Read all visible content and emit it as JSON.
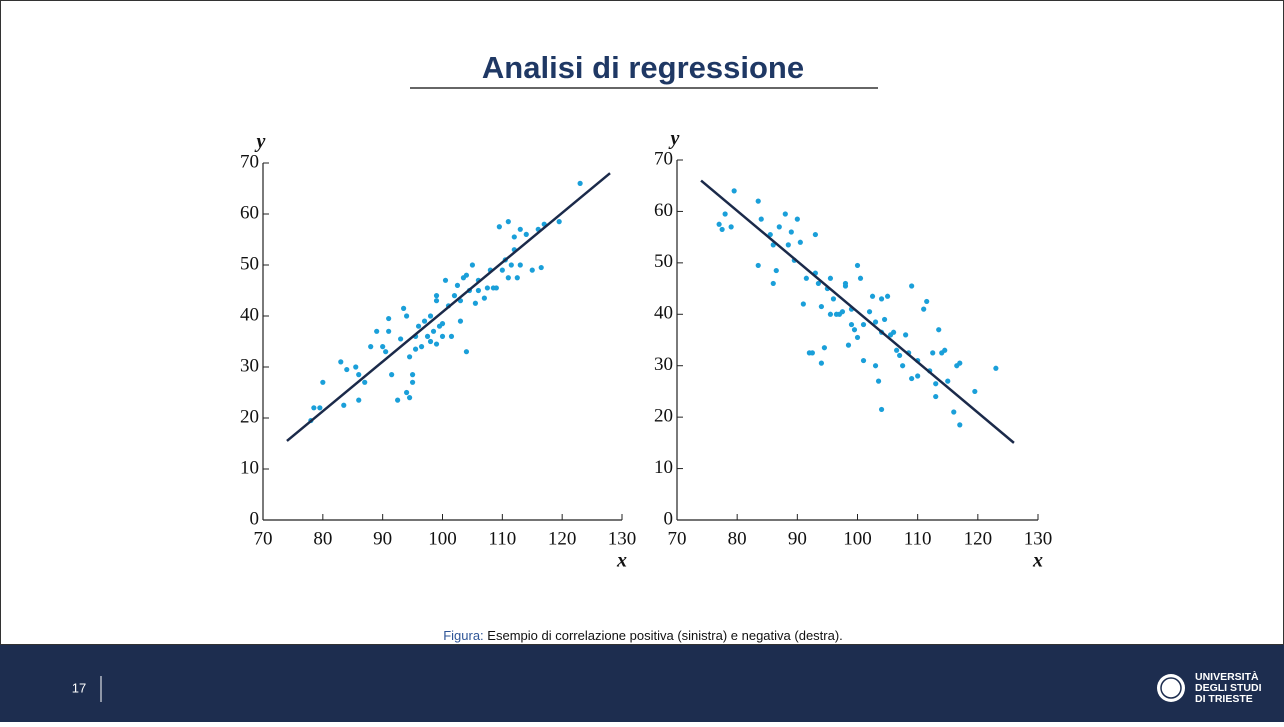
{
  "header": {
    "title": "Analisi di regressione"
  },
  "chart_data": [
    {
      "type": "scatter",
      "x_label": "x",
      "y_label": "y",
      "color": "#1a9fd9",
      "xlim": [
        70,
        130
      ],
      "ylim": [
        0,
        70
      ],
      "xticks": [
        70,
        80,
        90,
        100,
        110,
        120,
        130
      ],
      "yticks": [
        0,
        10,
        20,
        30,
        40,
        50,
        60,
        70
      ],
      "x": [
        78,
        78.5,
        79.5,
        80,
        83,
        83.5,
        84,
        85.5,
        86,
        86,
        87,
        88,
        89,
        90,
        90.5,
        91,
        91,
        91.5,
        92.5,
        93,
        93.5,
        94,
        94,
        94.5,
        94.5,
        95,
        95,
        95.5,
        95.5,
        96,
        96.5,
        97,
        97.5,
        98,
        98,
        98.5,
        99,
        99,
        99,
        99.5,
        100,
        100,
        100.5,
        101,
        101.5,
        102,
        102.5,
        103,
        103,
        103.5,
        104,
        104,
        104.5,
        105,
        105.5,
        106,
        106,
        107,
        107.5,
        108,
        108.5,
        109,
        109.5,
        110,
        110.5,
        111,
        111,
        111.5,
        112,
        112,
        112.5,
        113,
        113,
        114,
        115,
        116,
        116.5,
        117,
        119.5,
        123
      ],
      "values": [
        19.5,
        22,
        22,
        27,
        31,
        22.5,
        29.5,
        30,
        28.5,
        23.5,
        27,
        34,
        37,
        34,
        33,
        39.5,
        37,
        28.5,
        23.5,
        35.5,
        41.5,
        25,
        40,
        24,
        32,
        27,
        28.5,
        33.5,
        36,
        38,
        34,
        39,
        36,
        40,
        35,
        37,
        34.5,
        43,
        44,
        38,
        36,
        38.5,
        47,
        42,
        36,
        44,
        46,
        43,
        39,
        47.5,
        33,
        48,
        45,
        50,
        42.5,
        45,
        47,
        43.5,
        45.5,
        49,
        45.5,
        45.5,
        57.5,
        49,
        51,
        58.5,
        47.5,
        50,
        53,
        55.5,
        47.5,
        57,
        50,
        56,
        49,
        57,
        49.5,
        58,
        58.5,
        66
      ],
      "fit_line": {
        "color": "#1b2a4a",
        "x": [
          74,
          128
        ],
        "values": [
          15.5,
          68
        ]
      }
    },
    {
      "type": "scatter",
      "x_label": "x",
      "y_label": "y",
      "color": "#1a9fd9",
      "xlim": [
        70,
        130
      ],
      "ylim": [
        0,
        70
      ],
      "xticks": [
        70,
        80,
        90,
        100,
        110,
        120,
        130
      ],
      "yticks": [
        0,
        10,
        20,
        30,
        40,
        50,
        60,
        70
      ],
      "x": [
        77,
        77.5,
        78,
        79,
        79.5,
        83.5,
        83.5,
        84,
        85.5,
        86,
        86,
        86.5,
        87,
        88,
        88.5,
        89,
        89.5,
        90,
        90.5,
        91,
        91.5,
        92,
        92.5,
        93,
        93,
        93.5,
        94,
        94,
        94.5,
        95,
        95.5,
        95.5,
        96,
        96.5,
        97,
        97.5,
        98,
        98,
        98.5,
        99,
        99,
        99.5,
        100,
        100,
        100.5,
        101,
        101,
        102,
        102.5,
        103,
        103,
        103.5,
        104,
        104,
        104,
        104.5,
        105,
        105.5,
        106,
        106.5,
        107,
        107.5,
        108,
        108.5,
        109,
        109,
        110,
        110,
        111,
        111.5,
        112,
        112.5,
        113,
        113,
        113.5,
        114,
        114.5,
        115,
        116,
        116.5,
        117,
        117,
        119.5,
        123
      ],
      "values": [
        57.5,
        56.5,
        59.5,
        57,
        64,
        62,
        49.5,
        58.5,
        55.5,
        53.5,
        46,
        48.5,
        57,
        59.5,
        53.5,
        56,
        50.5,
        58.5,
        54,
        42,
        47,
        32.5,
        32.5,
        55.5,
        48,
        46,
        41.5,
        30.5,
        33.5,
        45,
        47,
        40,
        43,
        40,
        40,
        40.5,
        46,
        45.5,
        34,
        41,
        38,
        37,
        49.5,
        35.5,
        47,
        31,
        38,
        40.5,
        43.5,
        30,
        38.5,
        27,
        43,
        36.5,
        21.5,
        39,
        43.5,
        36,
        36.5,
        33,
        32,
        30,
        36,
        32.5,
        45.5,
        27.5,
        31,
        28,
        41,
        42.5,
        29,
        32.5,
        26.5,
        24,
        37,
        32.5,
        33,
        27,
        21,
        30,
        18.5,
        30.5,
        25,
        29.5
      ],
      "fit_line": {
        "color": "#1b2a4a",
        "x": [
          74,
          126
        ],
        "values": [
          66,
          15
        ]
      }
    }
  ],
  "caption": {
    "label": "Figura:",
    "text": "Esempio di correlazione positiva (sinistra) e negativa (destra)."
  },
  "footer": {
    "page": "17",
    "university": [
      "UNIVERSITÀ",
      "DEGLI STUDI",
      "DI TRIESTE"
    ]
  }
}
